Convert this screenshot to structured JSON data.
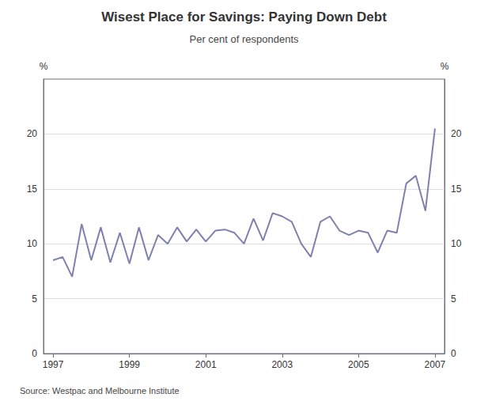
{
  "chart_data": {
    "type": "line",
    "title": "Wisest Place for Savings: Paying Down Debt",
    "subtitle": "Per cent of respondents",
    "source": "Source: Westpac and Melbourne Institute",
    "ylabel": "%",
    "y2label": "%",
    "color": "#8080b0",
    "grid": true,
    "xlim": [
      1996.75,
      2007.25
    ],
    "xticks": [
      1997,
      1999,
      2001,
      2003,
      2005,
      2007
    ],
    "ylim": [
      0,
      25
    ],
    "yticks": [
      0,
      5,
      10,
      15,
      20
    ],
    "y2lim": [
      0,
      25
    ],
    "y2ticks": [
      0,
      5,
      10,
      15,
      20
    ],
    "x": [
      1997.0,
      1997.25,
      1997.5,
      1997.75,
      1998.0,
      1998.25,
      1998.5,
      1998.75,
      1999.0,
      1999.25,
      1999.5,
      1999.75,
      2000.0,
      2000.25,
      2000.5,
      2000.75,
      2001.0,
      2001.25,
      2001.5,
      2001.75,
      2002.0,
      2002.25,
      2002.5,
      2002.75,
      2003.0,
      2003.25,
      2003.5,
      2003.75,
      2004.0,
      2004.25,
      2004.5,
      2004.75,
      2005.0,
      2005.25,
      2005.5,
      2005.75,
      2006.0,
      2006.25,
      2006.5,
      2006.75,
      2007.0
    ],
    "values": [
      8.5,
      8.8,
      7.0,
      11.8,
      8.5,
      11.5,
      8.3,
      11.0,
      8.2,
      11.5,
      8.5,
      10.8,
      10.0,
      11.5,
      10.2,
      11.3,
      10.2,
      11.2,
      11.3,
      11.0,
      10.0,
      12.3,
      10.3,
      12.8,
      12.5,
      12.0,
      10.0,
      8.8,
      12.0,
      12.5,
      11.2,
      10.8,
      11.2,
      11.0,
      9.2,
      11.2,
      11.0,
      15.5,
      16.2,
      13.0,
      20.5
    ]
  }
}
